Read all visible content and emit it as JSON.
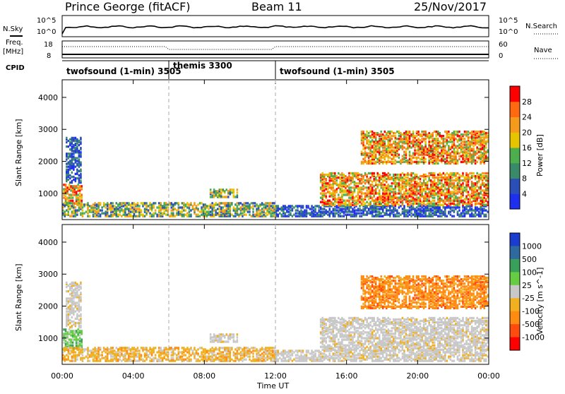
{
  "header": {
    "station": "Prince George (fitACF)",
    "beam": "Beam 11",
    "date": "25/Nov/2017"
  },
  "top_panels": {
    "nsky_label": "N.Sky",
    "nsky_ticks": [
      "10^5",
      "10^0"
    ],
    "nsearch_label": "N.Search",
    "nsearch_ticks": [
      "10^5",
      "10^0"
    ],
    "freq_label": "Freq.",
    "freq_unit": "[MHz]",
    "freq_ticks": [
      "18",
      "8"
    ],
    "nave_label": "Nave",
    "nave_ticks": [
      "60",
      "0"
    ],
    "cpid_label": "CPID",
    "cpid_segments": [
      {
        "label": "twofsound (1-min) 3505",
        "start_h": 0,
        "end_h": 6
      },
      {
        "label": "themis 3300",
        "start_h": 6,
        "end_h": 12
      },
      {
        "label": "twofsound (1-min) 3505",
        "start_h": 12,
        "end_h": 24
      }
    ]
  },
  "axes": {
    "xlabel": "Time UT",
    "xticks": [
      "00:00",
      "04:00",
      "08:00",
      "12:00",
      "16:00",
      "20:00",
      "00:00"
    ],
    "xtick_hours": [
      0,
      4,
      8,
      12,
      16,
      20,
      24
    ],
    "xlim_hours": [
      0,
      24
    ],
    "ylabel": "Slant Range [km]",
    "yticks": [
      "1000",
      "2000",
      "3000",
      "4000"
    ],
    "ytick_values": [
      1000,
      2000,
      3000,
      4000
    ],
    "ylim_km": [
      180,
      4550
    ]
  },
  "power_colorbar": {
    "label": "Power [dB]",
    "ticks": [
      "4",
      "8",
      "12",
      "16",
      "20",
      "24",
      "28"
    ],
    "colors": [
      "#1f2ff0",
      "#2a50b8",
      "#3a8a6a",
      "#4cae4c",
      "#e6c400",
      "#f59a1a",
      "#ff6a10",
      "#ff0000"
    ]
  },
  "velocity_colorbar": {
    "label": "Velocity [m s^-1]",
    "ticks": [
      "1000",
      "500",
      "100",
      "25",
      "-25",
      "-100",
      "-500",
      "-1000"
    ],
    "colors": [
      "#1a3dd0",
      "#2e6aa0",
      "#38a05a",
      "#66cc44",
      "#c8c8c8",
      "#f0b020",
      "#ff8c10",
      "#ff4a10",
      "#ff0000"
    ]
  },
  "chart_data": {
    "type": "heatmap",
    "panels": [
      "Power",
      "Velocity"
    ],
    "xlabel": "Time UT",
    "ylabel": "Slant Range [km]",
    "xlim_hours": [
      0,
      24
    ],
    "ylim_km": [
      180,
      4550
    ],
    "scatter_regions": [
      {
        "t0": 0.05,
        "t1": 1.1,
        "r0": 600,
        "r1": 1250,
        "power": "high",
        "velocity": "positive-small"
      },
      {
        "t0": 0.2,
        "t1": 1.0,
        "r0": 1300,
        "r1": 2700,
        "power": "low",
        "velocity": "near-zero"
      },
      {
        "t0": 0.0,
        "t1": 12.0,
        "r0": 250,
        "r1": 700,
        "power": "medium",
        "velocity": "negative-small"
      },
      {
        "t0": 8.3,
        "t1": 9.8,
        "r0": 850,
        "r1": 1100,
        "power": "medium",
        "velocity": "near-zero"
      },
      {
        "t0": 12.0,
        "t1": 24.0,
        "r0": 250,
        "r1": 600,
        "power": "low",
        "velocity": "near-zero"
      },
      {
        "t0": 14.5,
        "t1": 24.0,
        "r0": 600,
        "r1": 1600,
        "power": "high",
        "velocity": "near-zero"
      },
      {
        "t0": 16.8,
        "t1": 24.0,
        "r0": 1900,
        "r1": 2900,
        "power": "high",
        "velocity": "negative-large"
      }
    ]
  }
}
